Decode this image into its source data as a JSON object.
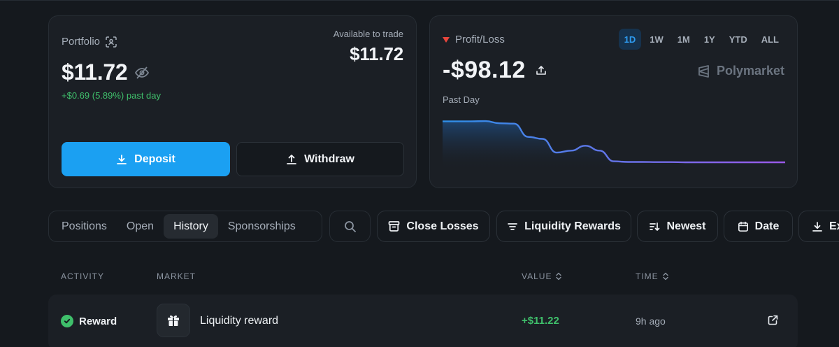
{
  "portfolio": {
    "title": "Portfolio",
    "value": "$11.72",
    "change": "+$0.69 (5.89%) past day",
    "available_label": "Available to trade",
    "available_value": "$11.72",
    "deposit_label": "Deposit",
    "withdraw_label": "Withdraw"
  },
  "pnl": {
    "title": "Profit/Loss",
    "value": "-$98.12",
    "period_label": "Past Day",
    "brand": "Polymarket",
    "ranges": [
      "1D",
      "1W",
      "1M",
      "1Y",
      "YTD",
      "ALL"
    ],
    "active_range": "1D"
  },
  "chart_data": {
    "type": "area",
    "x": [
      0,
      1,
      2,
      3,
      4,
      5,
      6,
      7,
      8,
      9,
      10,
      11,
      12,
      13,
      14,
      15,
      16,
      17,
      18,
      19,
      20,
      21,
      22,
      23,
      24
    ],
    "y": [
      -0.5,
      -0.5,
      -0.5,
      -0.4,
      -1.5,
      -1.7,
      -8.5,
      -9.5,
      -16.5,
      -15.5,
      -13,
      -15.5,
      -21,
      -21.3,
      -21.3,
      -21.4,
      -21.4,
      -21.5,
      -21.5,
      -21.5,
      -21.5,
      -21.5,
      -21.5,
      -21.5,
      -21.5
    ],
    "ylim": [
      -24,
      0
    ],
    "grid": false,
    "colors": {
      "start": "#2e8fe8",
      "end": "#9a58e8"
    }
  },
  "tabs": {
    "items": [
      "Positions",
      "Open",
      "History",
      "Sponsorships"
    ],
    "active": "History"
  },
  "filters": {
    "close_losses": "Close Losses",
    "liquidity_rewards": "Liquidity Rewards",
    "newest": "Newest",
    "date": "Date",
    "export": "Ex"
  },
  "table": {
    "headers": {
      "activity": "ACTIVITY",
      "market": "MARKET",
      "value": "VALUE",
      "time": "TIME"
    },
    "rows": [
      {
        "activity": "Reward",
        "market": "Liquidity reward",
        "value": "+$11.22",
        "time": "9h ago"
      }
    ]
  }
}
